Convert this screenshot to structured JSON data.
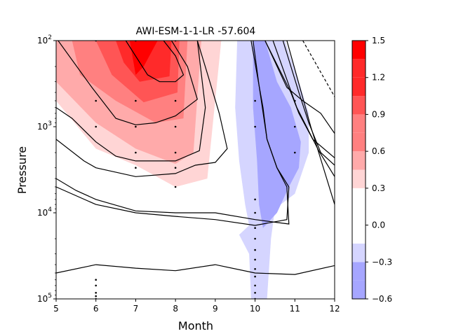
{
  "chart_data": {
    "type": "contour",
    "title": "AWI-ESM-1-1-LR -57.604",
    "xlabel": "Month",
    "ylabel": "Pressure",
    "xlim": [
      5,
      12
    ],
    "ylim": [
      100000,
      100
    ],
    "yscale": "log",
    "x_ticks": [
      "5",
      "6",
      "7",
      "8",
      "9",
      "10",
      "11",
      "12"
    ],
    "y_ticks": [
      {
        "value": 100,
        "base": "10",
        "exp": "2"
      },
      {
        "value": 1000,
        "base": "10",
        "exp": "3"
      },
      {
        "value": 10000,
        "base": "10",
        "exp": "4"
      },
      {
        "value": 100000,
        "base": "10",
        "exp": "5"
      }
    ],
    "colorbar": {
      "levels": [
        -0.6,
        -0.45,
        -0.3,
        -0.15,
        0.0,
        0.15,
        0.3,
        0.45,
        0.6,
        0.75,
        0.9,
        1.05,
        1.2,
        1.35,
        1.5
      ],
      "colors": [
        "#a6a6ff",
        "#a6a6ff",
        "#d5d5ff",
        "#ffffff",
        "#ffffff",
        "#ffffff",
        "#ffd5d5",
        "#ffaaaa",
        "#ff8080",
        "#ff8080",
        "#ff5555",
        "#ff2a2a",
        "#ff2a2a",
        "#ff0000"
      ],
      "tick_labels": [
        "−0.6",
        "−0.3",
        "0.0",
        "0.3",
        "0.6",
        "0.9",
        "1.2",
        "1.5"
      ],
      "tick_values": [
        -0.6,
        -0.3,
        0.0,
        0.3,
        0.6,
        0.9,
        1.2,
        1.5
      ]
    },
    "filled_regions": [
      {
        "level": "pos-0.3",
        "color": "#ffd5d5",
        "points": [
          [
            5,
            100
          ],
          [
            9.15,
            100
          ],
          [
            8.8,
            4000
          ],
          [
            8,
            5000
          ],
          [
            7,
            2800
          ],
          [
            6,
            1800
          ],
          [
            5,
            500
          ]
        ]
      },
      {
        "level": "pos-0.45",
        "color": "#ffaaaa",
        "points": [
          [
            5,
            100
          ],
          [
            8.65,
            100
          ],
          [
            8.45,
            2000
          ],
          [
            8,
            2700
          ],
          [
            7,
            1800
          ],
          [
            6,
            900
          ],
          [
            5,
            300
          ]
        ]
      },
      {
        "level": "pos-0.6",
        "color": "#ff8080",
        "points": [
          [
            5.4,
            100
          ],
          [
            8.3,
            100
          ],
          [
            8.2,
            800
          ],
          [
            7.5,
            900
          ],
          [
            6.5,
            500
          ],
          [
            5.6,
            250
          ]
        ]
      },
      {
        "level": "pos-0.9",
        "color": "#ff5555",
        "points": [
          [
            6,
            100
          ],
          [
            8.1,
            100
          ],
          [
            8.05,
            400
          ],
          [
            7.2,
            520
          ],
          [
            6.4,
            250
          ]
        ]
      },
      {
        "level": "pos-1.05",
        "color": "#ff2a2a",
        "points": [
          [
            6.5,
            100
          ],
          [
            7.9,
            100
          ],
          [
            7.85,
            260
          ],
          [
            7.1,
            300
          ],
          [
            6.7,
            180
          ]
        ]
      },
      {
        "level": "pos-1.2",
        "color": "#ff0000",
        "points": [
          [
            6.85,
            100
          ],
          [
            7.55,
            100
          ],
          [
            7.2,
            200
          ],
          [
            7,
            250
          ]
        ]
      },
      {
        "level": "neg-0.3",
        "color": "#d5d5ff",
        "points": [
          [
            9.55,
            100
          ],
          [
            10.75,
            100
          ],
          [
            11.1,
            300
          ],
          [
            11.35,
            700
          ],
          [
            11.35,
            2000
          ],
          [
            11,
            6000
          ],
          [
            10.5,
            9000
          ],
          [
            10.4,
            20000
          ],
          [
            10.3,
            100000
          ],
          [
            9.9,
            100000
          ],
          [
            9.85,
            30000
          ],
          [
            9.6,
            18000
          ],
          [
            9.85,
            14000
          ],
          [
            9.75,
            8000
          ],
          [
            9.6,
            2500
          ],
          [
            9.5,
            600
          ]
        ]
      },
      {
        "level": "neg-0.45",
        "color": "#a6a6ff",
        "points": [
          [
            9.95,
            100
          ],
          [
            10.25,
            100
          ],
          [
            10.55,
            300
          ],
          [
            10.9,
            600
          ],
          [
            11.15,
            1500
          ],
          [
            11.1,
            3000
          ],
          [
            10.85,
            5000
          ],
          [
            10.55,
            10000
          ],
          [
            10.2,
            15000
          ],
          [
            10.1,
            8000
          ],
          [
            10.05,
            2500
          ],
          [
            9.95,
            600
          ]
        ]
      }
    ],
    "contour_lines": [
      {
        "style": "solid",
        "points": [
          [
            6.75,
            100
          ],
          [
            7.3,
            250
          ],
          [
            7.6,
            300
          ],
          [
            8,
            300
          ],
          [
            8.2,
            250
          ],
          [
            8.0,
            150
          ],
          [
            7.7,
            100
          ]
        ]
      },
      {
        "style": "solid",
        "points": [
          [
            5.05,
            100
          ],
          [
            5.9,
            350
          ],
          [
            6.5,
            800
          ],
          [
            7,
            950
          ],
          [
            7.5,
            900
          ],
          [
            8,
            750
          ],
          [
            8.55,
            480
          ],
          [
            8.3,
            200
          ],
          [
            7.9,
            100
          ]
        ]
      },
      {
        "style": "solid",
        "points": [
          [
            5,
            600
          ],
          [
            5.4,
            800
          ],
          [
            6,
            1500
          ],
          [
            6.5,
            2200
          ],
          [
            7,
            2500
          ],
          [
            8,
            2500
          ],
          [
            8.6,
            1900
          ],
          [
            8.75,
            600
          ],
          [
            8.55,
            100
          ]
        ]
      },
      {
        "style": "solid",
        "points": [
          [
            5,
            1400
          ],
          [
            5.7,
            2500
          ],
          [
            6,
            3000
          ],
          [
            7,
            3800
          ],
          [
            8,
            3500
          ],
          [
            8.5,
            2800
          ],
          [
            9,
            2600
          ],
          [
            9.3,
            1800
          ],
          [
            9.1,
            700
          ],
          [
            8.8,
            240
          ],
          [
            8.55,
            100
          ]
        ]
      },
      {
        "style": "solid",
        "points": [
          [
            5,
            4000
          ],
          [
            5.5,
            5500
          ],
          [
            6,
            7000
          ],
          [
            7,
            9500
          ],
          [
            8,
            10000
          ],
          [
            9,
            10000
          ],
          [
            10,
            12000
          ],
          [
            10.85,
            13500
          ],
          [
            10.8,
            5000
          ],
          [
            10.55,
            3000
          ],
          [
            10.3,
            1400
          ],
          [
            10.2,
            600
          ],
          [
            10.1,
            330
          ],
          [
            9.9,
            100
          ]
        ]
      },
      {
        "style": "solid",
        "points": [
          [
            5,
            5000
          ],
          [
            6,
            8000
          ],
          [
            7,
            10000
          ],
          [
            8,
            11000
          ],
          [
            9,
            12000
          ],
          [
            10,
            14000
          ],
          [
            10.8,
            12000
          ],
          [
            10.85,
            5000
          ],
          [
            10.55,
            3000
          ],
          [
            10.3,
            1400
          ],
          [
            10.1,
            330
          ],
          [
            9.95,
            100
          ]
        ]
      },
      {
        "style": "solid",
        "points": [
          [
            5,
            50000
          ],
          [
            6,
            40000
          ],
          [
            7,
            44000
          ],
          [
            8,
            47000
          ],
          [
            9,
            40000
          ],
          [
            10,
            50000
          ],
          [
            11,
            52000
          ],
          [
            12,
            41000
          ]
        ]
      },
      {
        "style": "solid",
        "points": [
          [
            10.25,
            100
          ],
          [
            10.9,
            400
          ],
          [
            11.1,
            700
          ],
          [
            11.45,
            1400
          ],
          [
            12,
            2300
          ]
        ]
      },
      {
        "style": "solid",
        "points": [
          [
            10.7,
            100
          ],
          [
            11.1,
            400
          ],
          [
            11.35,
            900
          ],
          [
            11.65,
            2000
          ],
          [
            12,
            2800
          ]
        ]
      },
      {
        "style": "solid",
        "points": [
          [
            10.25,
            100
          ],
          [
            10.8,
            350
          ],
          [
            11.2,
            500
          ],
          [
            11.65,
            700
          ],
          [
            12,
            1200
          ]
        ]
      },
      {
        "style": "solid",
        "points": [
          [
            10.45,
            100
          ],
          [
            11.05,
            600
          ],
          [
            11.6,
            1900
          ],
          [
            12,
            3800
          ]
        ]
      },
      {
        "style": "solid",
        "points": [
          [
            10.8,
            100
          ],
          [
            11.4,
            1000
          ],
          [
            12,
            8000
          ]
        ]
      },
      {
        "style": "dashed",
        "points": [
          [
            11.2,
            100
          ],
          [
            12,
            450
          ]
        ]
      }
    ],
    "stipple_points": [
      [
        6,
        100
      ],
      [
        7,
        100
      ],
      [
        8,
        100
      ],
      [
        6,
        500
      ],
      [
        7,
        500
      ],
      [
        8,
        500
      ],
      [
        10,
        500
      ],
      [
        11,
        500
      ],
      [
        6,
        1000
      ],
      [
        7,
        1000
      ],
      [
        8,
        1000
      ],
      [
        10,
        1000
      ],
      [
        11,
        1000
      ],
      [
        7,
        2000
      ],
      [
        8,
        2000
      ],
      [
        11,
        2000
      ],
      [
        7,
        3000
      ],
      [
        8,
        3000
      ],
      [
        8,
        5000
      ],
      [
        10,
        7000
      ],
      [
        10,
        10000
      ],
      [
        10,
        15000
      ],
      [
        10,
        20000
      ],
      [
        10,
        27000
      ],
      [
        10,
        35000
      ],
      [
        10,
        45000
      ],
      [
        10,
        55000
      ],
      [
        10,
        70000
      ],
      [
        10,
        85000
      ],
      [
        10,
        100000
      ],
      [
        6,
        60000
      ],
      [
        6,
        70000
      ],
      [
        6,
        85000
      ],
      [
        6,
        93000
      ],
      [
        6,
        100000
      ]
    ]
  }
}
